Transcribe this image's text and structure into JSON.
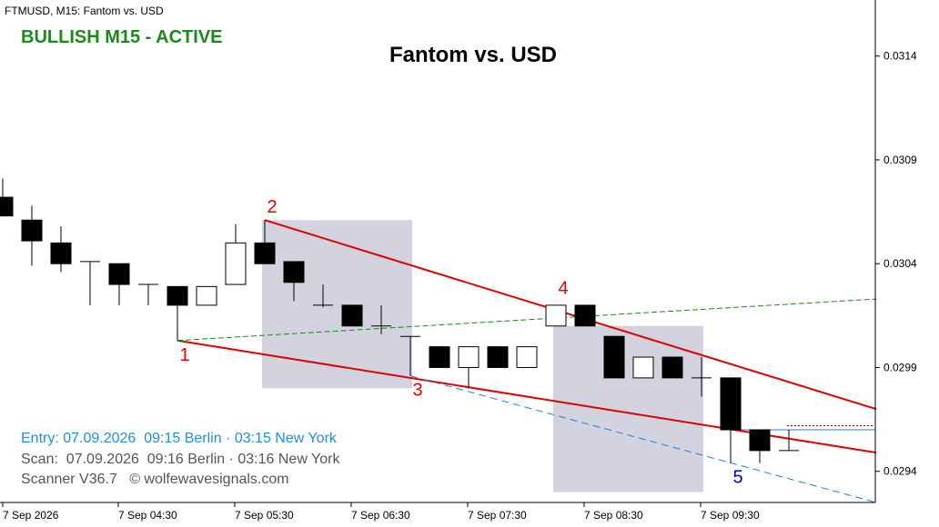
{
  "header": {
    "symbol_line": "FTMUSD, M15:  Fantom vs. USD",
    "signal": "BULLISH M15 - ACTIVE",
    "title": "Fantom vs. USD"
  },
  "info": {
    "entry": "Entry: 07.09.2026  09:15 Berlin · 03:15 New York",
    "scan": "Scan:  07.09.2026  09:16 Berlin · 03:16 New York",
    "scanner": "Scanner V36.7   © wolfewavesignals.com"
  },
  "colors": {
    "bull_candle_fill": "#ffffff",
    "bear_candle_fill": "#000000",
    "wave_line": "#e00000",
    "target_line": "#1e7fe0",
    "green_line": "#1a8a1a",
    "box": "#d3d3e0",
    "entry_text": "#1e8fe8",
    "scan_text": "#555555",
    "label_red": "#e00000",
    "label_blue": "#0000cc"
  },
  "chart_data": {
    "type": "candlestick",
    "title": "Fantom vs. USD",
    "symbol": "FTMUSD",
    "timeframe": "M15",
    "y_ticks": [
      "0.0314",
      "0.0309",
      "0.0304",
      "0.0299",
      "0.0294"
    ],
    "y_range": [
      0.02925,
      0.03167
    ],
    "x_ticks": [
      "7 Sep 2026",
      "7 Sep 04:30",
      "7 Sep 05:30",
      "7 Sep 06:30",
      "7 Sep 07:30",
      "7 Sep 08:30",
      "7 Sep 09:30"
    ],
    "candles": [
      {
        "o": 0.03072,
        "h": 0.03081,
        "l": 0.03063,
        "c": 0.03063
      },
      {
        "o": 0.03061,
        "h": 0.03068,
        "l": 0.03039,
        "c": 0.03051
      },
      {
        "o": 0.0305,
        "h": 0.03058,
        "l": 0.03036,
        "c": 0.0304
      },
      {
        "o": 0.03041,
        "h": 0.03041,
        "l": 0.0302,
        "c": 0.03041
      },
      {
        "o": 0.0304,
        "h": 0.0304,
        "l": 0.0302,
        "c": 0.0303
      },
      {
        "o": 0.0303,
        "h": 0.0303,
        "l": 0.0302,
        "c": 0.0303
      },
      {
        "o": 0.03029,
        "h": 0.03029,
        "l": 0.03003,
        "c": 0.0302
      },
      {
        "o": 0.0302,
        "h": 0.03029,
        "l": 0.0302,
        "c": 0.03029
      },
      {
        "o": 0.0303,
        "h": 0.03059,
        "l": 0.0303,
        "c": 0.0305
      },
      {
        "o": 0.0305,
        "h": 0.03061,
        "l": 0.0304,
        "c": 0.0304
      },
      {
        "o": 0.03041,
        "h": 0.03041,
        "l": 0.03022,
        "c": 0.03031
      },
      {
        "o": 0.0302,
        "h": 0.0303,
        "l": 0.03019,
        "c": 0.0302
      },
      {
        "o": 0.0302,
        "h": 0.0302,
        "l": 0.0301,
        "c": 0.0301
      },
      {
        "o": 0.0301,
        "h": 0.0302,
        "l": 0.03006,
        "c": 0.0301
      },
      {
        "o": 0.03005,
        "h": 0.03005,
        "l": 0.02986,
        "c": 0.03005
      },
      {
        "o": 0.03,
        "h": 0.03,
        "l": 0.0299,
        "c": 0.0299
      },
      {
        "o": 0.0299,
        "h": 0.03,
        "l": 0.0298,
        "c": 0.03
      },
      {
        "o": 0.03,
        "h": 0.03,
        "l": 0.0299,
        "c": 0.0299
      },
      {
        "o": 0.0299,
        "h": 0.03,
        "l": 0.0299,
        "c": 0.03
      },
      {
        "o": 0.0301,
        "h": 0.0302,
        "l": 0.0301,
        "c": 0.0302
      },
      {
        "o": 0.0302,
        "h": 0.0302,
        "l": 0.0301,
        "c": 0.0301
      },
      {
        "o": 0.03005,
        "h": 0.03005,
        "l": 0.02985,
        "c": 0.02985
      },
      {
        "o": 0.02985,
        "h": 0.02995,
        "l": 0.02985,
        "c": 0.02995
      },
      {
        "o": 0.02995,
        "h": 0.02995,
        "l": 0.02985,
        "c": 0.02985
      },
      {
        "o": 0.02985,
        "h": 0.02995,
        "l": 0.02976,
        "c": 0.02985
      },
      {
        "o": 0.02985,
        "h": 0.02985,
        "l": 0.02944,
        "c": 0.0296
      },
      {
        "o": 0.0296,
        "h": 0.0296,
        "l": 0.02944,
        "c": 0.0295
      },
      {
        "o": 0.0295,
        "h": 0.0296,
        "l": 0.0295,
        "c": 0.0295
      }
    ],
    "wave_points": [
      {
        "label": "1",
        "candle": 6,
        "price": 0.03003
      },
      {
        "label": "2",
        "candle": 9,
        "price": 0.03061
      },
      {
        "label": "3",
        "candle": 14,
        "price": 0.02986
      },
      {
        "label": "4",
        "candle": 19,
        "price": 0.03022
      },
      {
        "label": "5",
        "candle": 25,
        "price": 0.02944
      }
    ],
    "lines": [
      {
        "name": "1-3 line",
        "from": {
          "candle": 6,
          "price": 0.03003
        },
        "to": {
          "candle": 30,
          "price": 0.02949
        }
      },
      {
        "name": "2-4 line",
        "from": {
          "candle": 9,
          "price": 0.03061
        },
        "to": {
          "candle": 30,
          "price": 0.0297
        }
      },
      {
        "name": "1-4 line",
        "from": {
          "candle": 6,
          "price": 0.03003
        },
        "to": {
          "candle": 30,
          "price": 0.03023
        }
      },
      {
        "name": "target line",
        "from": {
          "candle": 14,
          "price": 0.02986
        },
        "to": {
          "candle": 30,
          "price": 0.02925
        }
      }
    ],
    "boxes": [
      {
        "from_candle": 9,
        "to_candle": 14,
        "low": 0.0298,
        "high": 0.03061
      },
      {
        "from_candle": 19,
        "to_candle": 24,
        "low": 0.0293,
        "high": 0.0301
      }
    ],
    "entry_price": 0.02962
  }
}
